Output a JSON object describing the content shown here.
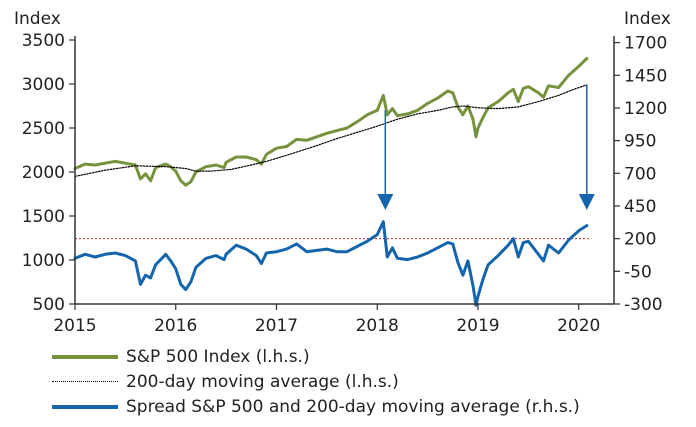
{
  "chart_data": {
    "type": "line",
    "left_axis_label": "Index",
    "right_axis_label": "Index",
    "left_ticks": [
      500,
      1000,
      1500,
      2000,
      2500,
      3000,
      3500
    ],
    "left_tick_labels": [
      "500",
      "1000",
      "1500",
      "2000",
      "2500",
      "3000",
      "3500"
    ],
    "right_ticks": [
      -300,
      -50,
      200,
      450,
      700,
      950,
      1200,
      1450,
      1700
    ],
    "right_tick_labels": [
      "-300",
      "-50",
      "200",
      "450",
      "700",
      "950",
      "1200",
      "1450",
      "1700"
    ],
    "x_ticks": [
      2015,
      2016,
      2017,
      2018,
      2019,
      2020
    ],
    "x_tick_labels": [
      "2015",
      "2016",
      "2017",
      "2018",
      "2019",
      "2020"
    ],
    "xlim": [
      2015,
      2020.35
    ],
    "ylim_left": [
      500,
      3500
    ],
    "ylim_right": [
      -300,
      1720
    ],
    "reference_line": {
      "axis": "right",
      "value": 200,
      "color": "#cc2222"
    },
    "arrows": [
      {
        "x": 2018.08,
        "from_left_value": 2700,
        "to_right_value": 450
      },
      {
        "x": 2020.08,
        "from_left_value": 2990,
        "to_right_value": 450
      }
    ],
    "series": [
      {
        "name": "S&P 500 Index (l.h.s.)",
        "axis": "left",
        "color": "#76923c",
        "points": [
          [
            2015.0,
            2040
          ],
          [
            2015.1,
            2090
          ],
          [
            2015.2,
            2080
          ],
          [
            2015.3,
            2100
          ],
          [
            2015.4,
            2120
          ],
          [
            2015.5,
            2100
          ],
          [
            2015.6,
            2080
          ],
          [
            2015.65,
            1920
          ],
          [
            2015.7,
            1980
          ],
          [
            2015.75,
            1900
          ],
          [
            2015.8,
            2050
          ],
          [
            2015.9,
            2090
          ],
          [
            2015.95,
            2060
          ],
          [
            2016.0,
            2010
          ],
          [
            2016.05,
            1900
          ],
          [
            2016.1,
            1850
          ],
          [
            2016.15,
            1890
          ],
          [
            2016.2,
            2000
          ],
          [
            2016.3,
            2060
          ],
          [
            2016.4,
            2080
          ],
          [
            2016.48,
            2050
          ],
          [
            2016.5,
            2110
          ],
          [
            2016.6,
            2170
          ],
          [
            2016.7,
            2170
          ],
          [
            2016.8,
            2140
          ],
          [
            2016.85,
            2090
          ],
          [
            2016.9,
            2200
          ],
          [
            2017.0,
            2270
          ],
          [
            2017.1,
            2290
          ],
          [
            2017.2,
            2370
          ],
          [
            2017.3,
            2360
          ],
          [
            2017.4,
            2400
          ],
          [
            2017.5,
            2440
          ],
          [
            2017.6,
            2470
          ],
          [
            2017.7,
            2500
          ],
          [
            2017.8,
            2570
          ],
          [
            2017.9,
            2650
          ],
          [
            2018.0,
            2700
          ],
          [
            2018.06,
            2870
          ],
          [
            2018.1,
            2650
          ],
          [
            2018.15,
            2720
          ],
          [
            2018.2,
            2640
          ],
          [
            2018.3,
            2660
          ],
          [
            2018.4,
            2700
          ],
          [
            2018.5,
            2780
          ],
          [
            2018.6,
            2840
          ],
          [
            2018.7,
            2920
          ],
          [
            2018.75,
            2900
          ],
          [
            2018.8,
            2740
          ],
          [
            2018.85,
            2650
          ],
          [
            2018.9,
            2750
          ],
          [
            2018.95,
            2600
          ],
          [
            2018.98,
            2400
          ],
          [
            2019.0,
            2500
          ],
          [
            2019.05,
            2620
          ],
          [
            2019.1,
            2730
          ],
          [
            2019.2,
            2800
          ],
          [
            2019.3,
            2900
          ],
          [
            2019.35,
            2940
          ],
          [
            2019.4,
            2800
          ],
          [
            2019.45,
            2950
          ],
          [
            2019.5,
            2970
          ],
          [
            2019.6,
            2900
          ],
          [
            2019.65,
            2850
          ],
          [
            2019.7,
            2980
          ],
          [
            2019.8,
            2960
          ],
          [
            2019.85,
            3030
          ],
          [
            2019.9,
            3100
          ],
          [
            2020.0,
            3200
          ],
          [
            2020.08,
            3290
          ]
        ]
      },
      {
        "name": "200-day moving average (l.h.s.)",
        "axis": "left",
        "color": "#000000",
        "points": [
          [
            2015.0,
            1950
          ],
          [
            2015.3,
            2020
          ],
          [
            2015.6,
            2070
          ],
          [
            2015.9,
            2060
          ],
          [
            2016.1,
            2040
          ],
          [
            2016.2,
            2010
          ],
          [
            2016.35,
            2010
          ],
          [
            2016.55,
            2030
          ],
          [
            2016.75,
            2080
          ],
          [
            2016.9,
            2120
          ],
          [
            2017.1,
            2190
          ],
          [
            2017.4,
            2300
          ],
          [
            2017.6,
            2380
          ],
          [
            2017.8,
            2450
          ],
          [
            2018.0,
            2520
          ],
          [
            2018.2,
            2600
          ],
          [
            2018.4,
            2660
          ],
          [
            2018.6,
            2700
          ],
          [
            2018.75,
            2740
          ],
          [
            2018.85,
            2750
          ],
          [
            2019.0,
            2730
          ],
          [
            2019.2,
            2720
          ],
          [
            2019.4,
            2740
          ],
          [
            2019.6,
            2800
          ],
          [
            2019.8,
            2870
          ],
          [
            2019.95,
            2940
          ],
          [
            2020.08,
            2990
          ]
        ]
      },
      {
        "name": "Spread S&P 500 and 200-day moving average (r.h.s.)",
        "axis": "right",
        "color": "#1565ad",
        "points": [
          [
            2015.0,
            50
          ],
          [
            2015.1,
            80
          ],
          [
            2015.2,
            60
          ],
          [
            2015.3,
            80
          ],
          [
            2015.4,
            90
          ],
          [
            2015.5,
            70
          ],
          [
            2015.6,
            30
          ],
          [
            2015.65,
            -150
          ],
          [
            2015.7,
            -80
          ],
          [
            2015.75,
            -100
          ],
          [
            2015.8,
            0
          ],
          [
            2015.9,
            80
          ],
          [
            2015.95,
            30
          ],
          [
            2016.0,
            -30
          ],
          [
            2016.05,
            -150
          ],
          [
            2016.1,
            -190
          ],
          [
            2016.15,
            -130
          ],
          [
            2016.2,
            -20
          ],
          [
            2016.3,
            50
          ],
          [
            2016.4,
            70
          ],
          [
            2016.48,
            40
          ],
          [
            2016.5,
            80
          ],
          [
            2016.6,
            150
          ],
          [
            2016.7,
            120
          ],
          [
            2016.8,
            70
          ],
          [
            2016.85,
            10
          ],
          [
            2016.9,
            90
          ],
          [
            2017.0,
            100
          ],
          [
            2017.1,
            120
          ],
          [
            2017.2,
            160
          ],
          [
            2017.3,
            100
          ],
          [
            2017.4,
            110
          ],
          [
            2017.5,
            120
          ],
          [
            2017.6,
            100
          ],
          [
            2017.7,
            100
          ],
          [
            2017.8,
            140
          ],
          [
            2017.9,
            180
          ],
          [
            2018.0,
            230
          ],
          [
            2018.06,
            330
          ],
          [
            2018.1,
            60
          ],
          [
            2018.15,
            130
          ],
          [
            2018.2,
            50
          ],
          [
            2018.3,
            40
          ],
          [
            2018.4,
            60
          ],
          [
            2018.5,
            90
          ],
          [
            2018.6,
            130
          ],
          [
            2018.7,
            170
          ],
          [
            2018.75,
            160
          ],
          [
            2018.8,
            20
          ],
          [
            2018.85,
            -80
          ],
          [
            2018.9,
            30
          ],
          [
            2018.95,
            -160
          ],
          [
            2018.98,
            -310
          ],
          [
            2019.0,
            -240
          ],
          [
            2019.05,
            -110
          ],
          [
            2019.1,
            0
          ],
          [
            2019.2,
            70
          ],
          [
            2019.3,
            150
          ],
          [
            2019.35,
            200
          ],
          [
            2019.4,
            60
          ],
          [
            2019.45,
            170
          ],
          [
            2019.5,
            180
          ],
          [
            2019.6,
            80
          ],
          [
            2019.65,
            30
          ],
          [
            2019.7,
            150
          ],
          [
            2019.8,
            90
          ],
          [
            2019.85,
            140
          ],
          [
            2019.9,
            190
          ],
          [
            2020.0,
            260
          ],
          [
            2020.08,
            300
          ]
        ]
      }
    ]
  },
  "legend": {
    "items": [
      {
        "label": "S&P 500 Index (l.h.s.)",
        "color": "#76923c"
      },
      {
        "label": "200-day moving average (l.h.s.)",
        "color": "#000000"
      },
      {
        "label": "Spread S&P 500 and 200-day moving average (r.h.s.)",
        "color": "#1565ad"
      }
    ]
  }
}
